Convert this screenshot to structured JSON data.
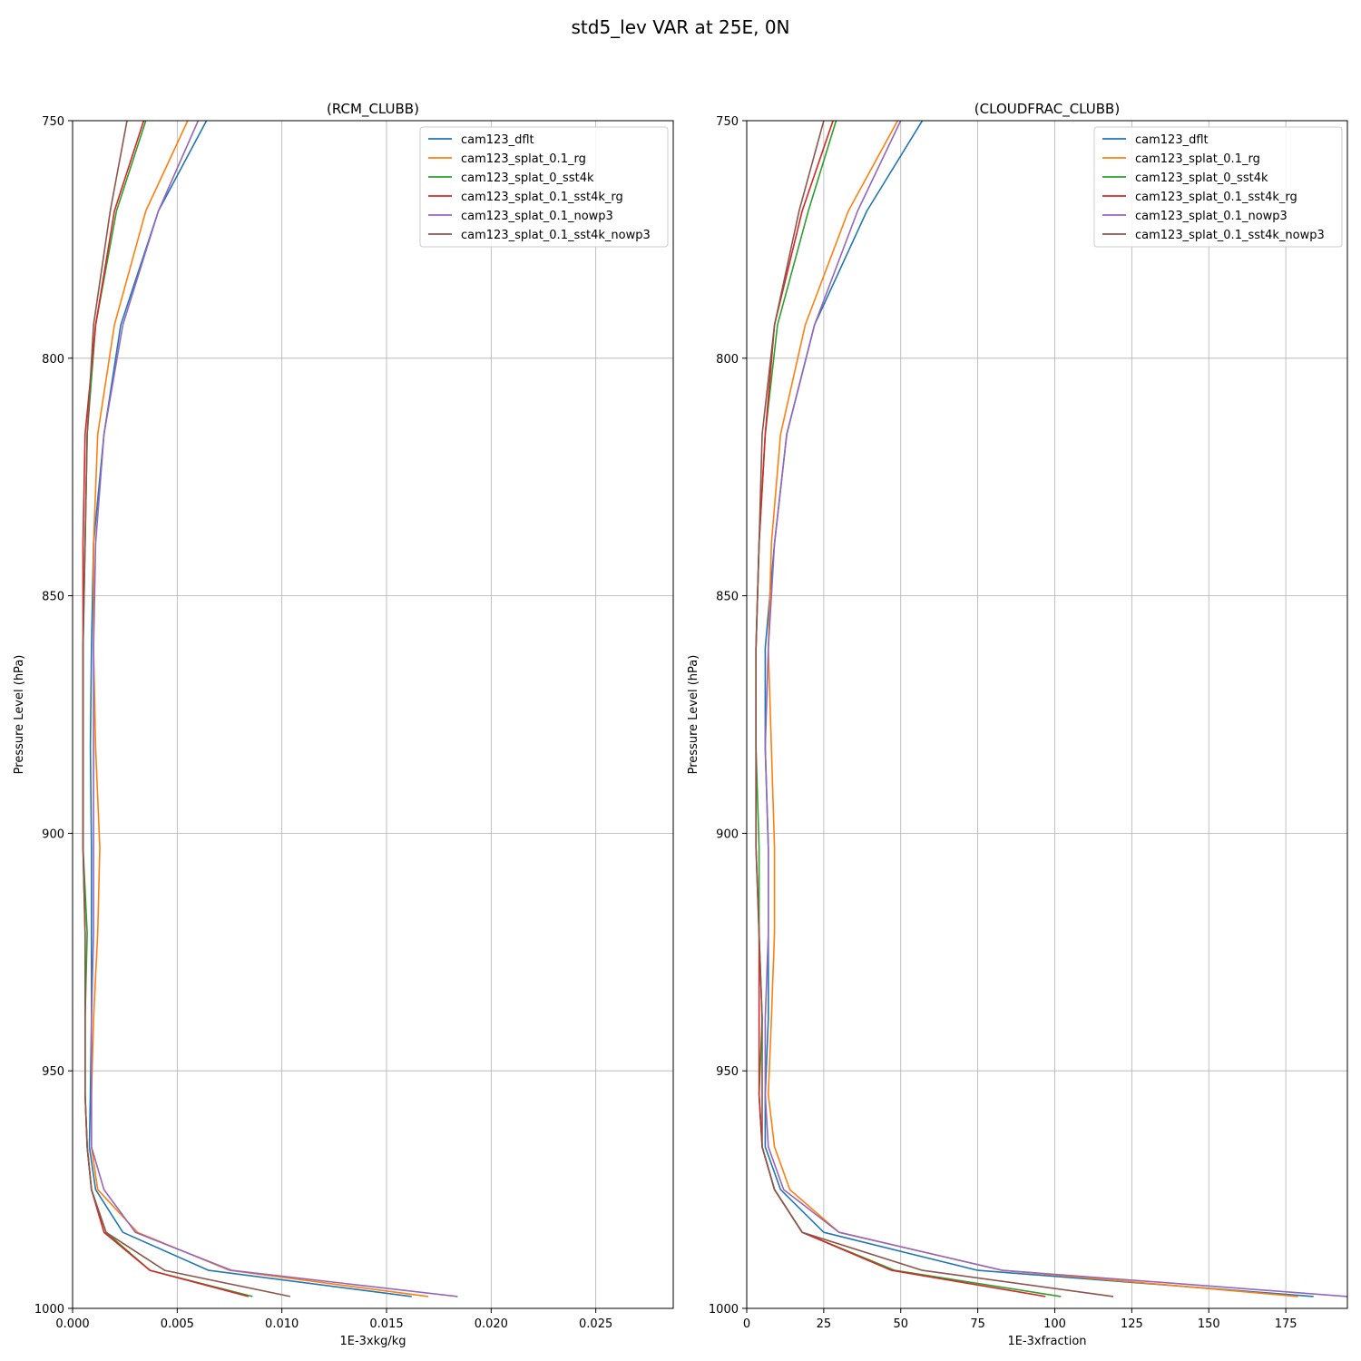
{
  "figure": {
    "title": "std5_lev VAR at 25E, 0N"
  },
  "colors": {
    "series": [
      "#1f77b4",
      "#ff7f0e",
      "#2ca02c",
      "#d62728",
      "#9467bd",
      "#8c564b"
    ],
    "grid": "#b0b0b0"
  },
  "chart_data": [
    {
      "type": "line",
      "title": "(RCM_CLUBB)",
      "xlabel": "1E-3xkg/kg",
      "ylabel": "Pressure Level (hPa)",
      "xlim": [
        0,
        0.0287
      ],
      "ylim": [
        1000,
        750
      ],
      "y_inverted": true,
      "grid": true,
      "legend_position": "upper-right",
      "xticks": [
        0,
        0.005,
        0.01,
        0.015,
        0.02,
        0.025
      ],
      "xtick_labels": [
        "0.000",
        "0.005",
        "0.010",
        "0.015",
        "0.020",
        "0.025"
      ],
      "yticks": [
        750,
        800,
        850,
        900,
        950,
        1000
      ],
      "ytick_labels": [
        "750",
        "800",
        "850",
        "900",
        "950",
        "1000"
      ],
      "levels": [
        750,
        769,
        793,
        816,
        839,
        861,
        882,
        903,
        921,
        939,
        955,
        966,
        975,
        984,
        992,
        997.5
      ],
      "series": [
        {
          "name": "cam123_dflt",
          "values": [
            0.0064,
            0.0041,
            0.0023,
            0.0015,
            0.001,
            0.0009,
            0.00085,
            0.0009,
            0.0009,
            0.0009,
            0.00085,
            0.0008,
            0.0011,
            0.0024,
            0.0065,
            0.0162
          ]
        },
        {
          "name": "cam123_splat_0.1_rg",
          "values": [
            0.0055,
            0.0035,
            0.002,
            0.0012,
            0.001,
            0.001,
            0.0011,
            0.0013,
            0.0012,
            0.001,
            0.0009,
            0.0009,
            0.0012,
            0.0031,
            0.0075,
            0.017
          ]
        },
        {
          "name": "cam123_splat_0_sst4k",
          "values": [
            0.0035,
            0.0021,
            0.0011,
            0.0007,
            0.0006,
            0.0005,
            0.0005,
            0.0005,
            0.0007,
            0.0006,
            0.0006,
            0.0007,
            0.0009,
            0.0016,
            0.0037,
            0.0086
          ]
        },
        {
          "name": "cam123_splat_0.1_sst4k_rg",
          "values": [
            0.0034,
            0.002,
            0.0011,
            0.0006,
            0.0005,
            0.0005,
            0.0005,
            0.0005,
            0.0006,
            0.0006,
            0.0006,
            0.0007,
            0.0009,
            0.0015,
            0.0037,
            0.0084
          ]
        },
        {
          "name": "cam123_splat_0.1_nowp3",
          "values": [
            0.006,
            0.0041,
            0.0024,
            0.0015,
            0.0011,
            0.001,
            0.001,
            0.001,
            0.001,
            0.0009,
            0.0009,
            0.0009,
            0.0015,
            0.003,
            0.0076,
            0.0184
          ]
        },
        {
          "name": "cam123_splat_0.1_sst4k_nowp3",
          "values": [
            0.0026,
            0.0018,
            0.001,
            0.0007,
            0.0006,
            0.0005,
            0.0005,
            0.0005,
            0.0006,
            0.0006,
            0.0006,
            0.0007,
            0.0009,
            0.0016,
            0.0044,
            0.0104
          ]
        }
      ]
    },
    {
      "type": "line",
      "title": "(CLOUDFRAC_CLUBB)",
      "xlabel": "1E-3xfraction",
      "ylabel": "Pressure Level (hPa)",
      "xlim": [
        0,
        195
      ],
      "ylim": [
        1000,
        750
      ],
      "y_inverted": true,
      "grid": true,
      "legend_position": "upper-right",
      "xticks": [
        0,
        25,
        50,
        75,
        100,
        125,
        150,
        175
      ],
      "xtick_labels": [
        "0",
        "25",
        "50",
        "75",
        "100",
        "125",
        "150",
        "175"
      ],
      "yticks": [
        750,
        800,
        850,
        900,
        950,
        1000
      ],
      "ytick_labels": [
        "750",
        "800",
        "850",
        "900",
        "950",
        "1000"
      ],
      "levels": [
        750,
        769,
        793,
        816,
        839,
        861,
        882,
        903,
        921,
        939,
        955,
        966,
        975,
        984,
        992,
        997.5
      ],
      "series": [
        {
          "name": "cam123_dflt",
          "values": [
            57,
            39,
            22,
            13,
            9,
            6,
            6,
            7,
            7,
            7,
            6,
            6,
            11,
            25,
            75,
            184
          ]
        },
        {
          "name": "cam123_splat_0.1_rg",
          "values": [
            49,
            33,
            19,
            11,
            8,
            7,
            8,
            9,
            9,
            8,
            7,
            9,
            14,
            30,
            83,
            179
          ]
        },
        {
          "name": "cam123_splat_0_sst4k",
          "values": [
            29,
            20,
            10,
            6,
            4,
            3,
            3,
            4,
            4,
            5,
            4,
            5,
            9,
            18,
            48,
            102
          ]
        },
        {
          "name": "cam123_splat_0.1_sst4k_rg",
          "values": [
            28,
            18,
            9,
            6,
            4,
            3,
            3,
            3,
            4,
            4,
            4,
            5,
            9,
            18,
            47,
            97
          ]
        },
        {
          "name": "cam123_splat_0.1_nowp3",
          "values": [
            50,
            36,
            22,
            13,
            9,
            7,
            6,
            7,
            7,
            6,
            6,
            7,
            12,
            30,
            83,
            195
          ]
        },
        {
          "name": "cam123_splat_0.1_sst4k_nowp3",
          "values": [
            25,
            17,
            9,
            5,
            4,
            3,
            3,
            3,
            4,
            5,
            5,
            5,
            9,
            18,
            57,
            119
          ]
        }
      ]
    }
  ]
}
